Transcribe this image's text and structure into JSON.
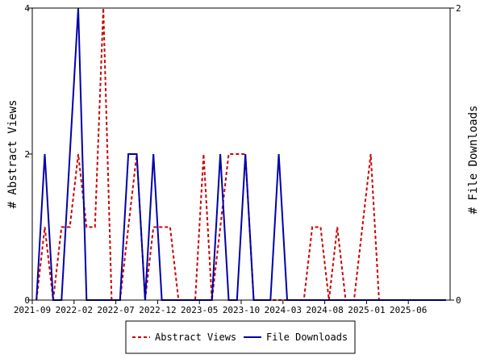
{
  "chart_data": {
    "type": "line",
    "title": "",
    "xlabel": "",
    "ylabel": "# Abstract Views",
    "ylabel_right": "# File Downloads",
    "x_tick_labels": [
      "2021-09",
      "2022-02",
      "2022-07",
      "2022-12",
      "2023-05",
      "2023-10",
      "2024-03",
      "2024-08",
      "2025-01",
      "2025-06"
    ],
    "ylim": [
      0,
      4
    ],
    "y_ticks": [
      "0",
      "2",
      "4"
    ],
    "ylim_right": [
      0,
      2
    ],
    "y_ticks_right": [
      "0",
      "2"
    ],
    "grid": false,
    "legend_position": "bottom-center",
    "months": [
      "2021-09",
      "2021-10",
      "2021-11",
      "2021-12",
      "2022-01",
      "2022-02",
      "2022-03",
      "2022-04",
      "2022-05",
      "2022-06",
      "2022-07",
      "2022-08",
      "2022-09",
      "2022-10",
      "2022-11",
      "2022-12",
      "2023-01",
      "2023-02",
      "2023-03",
      "2023-04",
      "2023-05",
      "2023-06",
      "2023-07",
      "2023-08",
      "2023-09",
      "2023-10",
      "2023-11",
      "2023-12",
      "2024-01",
      "2024-02",
      "2024-03",
      "2024-04",
      "2024-05",
      "2024-06",
      "2024-07",
      "2024-08",
      "2024-09",
      "2024-10",
      "2024-11",
      "2024-12",
      "2025-01",
      "2025-02",
      "2025-03",
      "2025-04",
      "2025-05",
      "2025-06",
      "2025-07",
      "2025-08",
      "2025-09",
      "2025-10"
    ],
    "series": [
      {
        "name": "Abstract Views",
        "axis": "left",
        "color": "#cc0000",
        "dash": "dashed",
        "values": [
          0,
          1,
          0,
          1,
          1,
          2,
          1,
          1,
          4,
          0,
          0,
          1,
          2,
          0,
          1,
          1,
          1,
          0,
          0,
          0,
          2,
          0,
          1,
          2,
          2,
          2,
          0,
          0,
          0,
          0,
          0,
          0,
          0,
          1,
          1,
          0,
          1,
          0,
          0,
          1,
          2,
          0,
          0,
          0,
          0,
          0,
          0,
          0,
          0,
          0
        ]
      },
      {
        "name": "File Downloads",
        "axis": "right",
        "color": "#0000aa",
        "dash": "solid",
        "values": [
          0,
          1,
          0,
          0,
          1,
          2,
          0,
          0,
          0,
          0,
          0,
          1,
          1,
          0,
          1,
          0,
          0,
          0,
          0,
          0,
          0,
          0,
          1,
          0,
          0,
          1,
          0,
          0,
          0,
          1,
          0,
          0,
          0,
          0,
          0,
          0,
          0,
          0,
          0,
          0,
          0,
          0,
          0,
          0,
          0,
          0,
          0,
          0,
          0,
          0
        ]
      }
    ]
  }
}
